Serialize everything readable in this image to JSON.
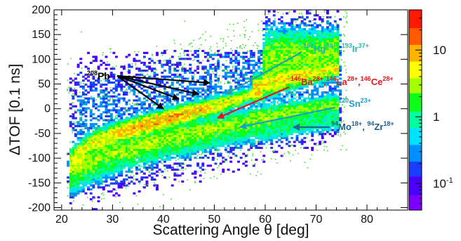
{
  "chart_data": {
    "type": "heatmap",
    "xlabel": "Scattering Angle θ [deg]",
    "ylabel": "ΔTOF [0.1 ns]",
    "xlim": [
      18.5,
      88
    ],
    "ylim": [
      -205,
      200
    ],
    "x_ticks": [
      20,
      30,
      40,
      50,
      60,
      70,
      80
    ],
    "y_ticks": [
      200,
      150,
      100,
      50,
      0,
      -50,
      -100,
      -150,
      -200
    ],
    "colorbar": {
      "scale": "log",
      "range": [
        0.04,
        40
      ],
      "tick_labels": [
        {
          "value": 10,
          "text": "10"
        },
        {
          "value": 1,
          "text": "1"
        },
        {
          "value": 0.1,
          "text": "10",
          "sup": "-1"
        }
      ],
      "colors": [
        "#7d00ff",
        "#4a00ff",
        "#1a3cff",
        "#0090ff",
        "#00e0ff",
        "#00ff9f",
        "#0cff1a",
        "#a6ff00",
        "#ffff00",
        "#ffb400",
        "#ff5a00",
        "#ff1800"
      ]
    },
    "bands": [
      {
        "name": "Pb",
        "peak": 9,
        "width": 7,
        "points": [
          [
            21.5,
            -105
          ],
          [
            25,
            -75
          ],
          [
            30,
            -52
          ],
          [
            35,
            -37
          ],
          [
            40,
            -22
          ],
          [
            45,
            -8
          ],
          [
            50,
            5
          ],
          [
            55,
            20
          ],
          [
            58,
            33
          ]
        ]
      },
      {
        "name": "Ba-La-Ce",
        "peak": 5,
        "width": 8,
        "points": [
          [
            58,
            42
          ],
          [
            62,
            55
          ],
          [
            66,
            65
          ],
          [
            70,
            72
          ],
          [
            73,
            80
          ]
        ]
      },
      {
        "name": "Sn",
        "peak": 2.5,
        "width": 9,
        "points": [
          [
            21.5,
            -125
          ],
          [
            25,
            -105
          ],
          [
            30,
            -88
          ],
          [
            35,
            -74
          ],
          [
            40,
            -60
          ],
          [
            45,
            -48
          ],
          [
            50,
            -38
          ],
          [
            55,
            -27
          ],
          [
            60,
            -16
          ],
          [
            65,
            -6
          ],
          [
            70,
            2
          ],
          [
            73,
            8
          ]
        ]
      },
      {
        "name": "Mo-Zr",
        "peak": 1,
        "width": 10,
        "points": [
          [
            21.5,
            -150
          ],
          [
            25,
            -130
          ],
          [
            30,
            -110
          ],
          [
            35,
            -92
          ],
          [
            40,
            -80
          ],
          [
            45,
            -71
          ],
          [
            50,
            -60
          ],
          [
            55,
            -51
          ],
          [
            60,
            -43
          ],
          [
            65,
            -38
          ],
          [
            70,
            -30
          ],
          [
            73,
            -25
          ]
        ]
      },
      {
        "name": "Hg-Ir",
        "peak": 2.5,
        "width": 20,
        "points": [
          [
            60,
            100
          ],
          [
            65,
            108
          ],
          [
            70,
            112
          ],
          [
            73,
            118
          ]
        ]
      }
    ]
  },
  "annotations": {
    "pb": {
      "label": "Pb",
      "mass": "208",
      "color": "#000000"
    },
    "hg_ir": {
      "parts": [
        {
          "sup": "198"
        },
        {
          "t": "Hg"
        },
        {
          "sup": "38+"
        },
        {
          "t": ", "
        },
        {
          "sup": "193"
        },
        {
          "t": "Ir"
        },
        {
          "sup": "37+"
        }
      ],
      "color": "#2ab5a8"
    },
    "ba_la_ce": {
      "parts": [
        {
          "sup": "146"
        },
        {
          "t": "Ba"
        },
        {
          "sup": "28+"
        },
        {
          "t": ","
        },
        {
          "sup": "146"
        },
        {
          "t": "La"
        },
        {
          "sup": "28+"
        },
        {
          "t": ","
        },
        {
          "sup": "146"
        },
        {
          "t": "Ce"
        },
        {
          "sup": "28+"
        }
      ],
      "color": "#e8151b"
    },
    "sn": {
      "parts": [
        {
          "sup": "120"
        },
        {
          "t": "Sn"
        },
        {
          "sup": "23+"
        }
      ],
      "color": "#1a9ed0"
    },
    "mo_zr": {
      "parts": [
        {
          "sup": "94"
        },
        {
          "t": "Mo"
        },
        {
          "sup": "18+"
        },
        {
          "t": ", "
        },
        {
          "sup": "94"
        },
        {
          "t": "Zr"
        },
        {
          "sup": "18+"
        }
      ],
      "color": "#1a5f8a"
    },
    "arrow_colors": {
      "pb": "#000000",
      "hg_ir": "#2aa0a8",
      "ba_la_ce": "#e8151b",
      "sn": "#1a9ed0",
      "mo_zr": "#1a6b9a"
    }
  }
}
